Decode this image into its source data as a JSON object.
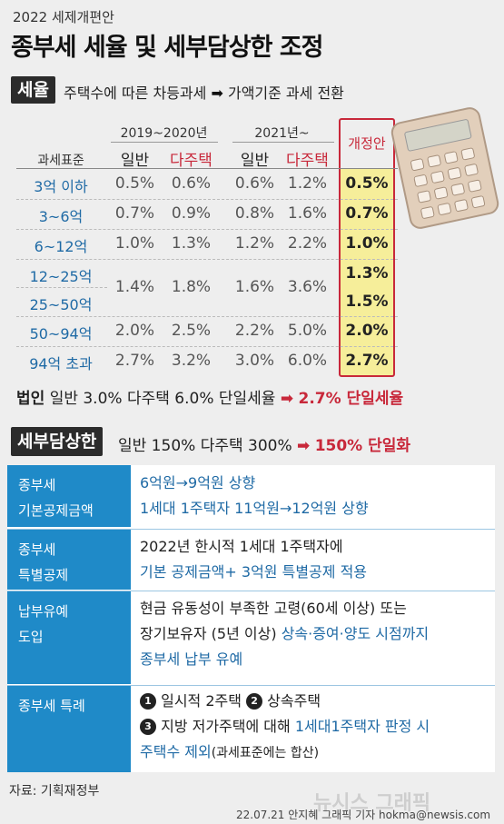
{
  "header": {
    "subtitle": "2022 세제개편안",
    "title": "종부세 세율 및 세부담상한 조정"
  },
  "section1": {
    "tag": "세율",
    "desc_left": "주택수에 따른 차등과세",
    "arrow": "➡",
    "desc_right": "가액기준 과세 전환"
  },
  "tax_table": {
    "group1": "2019~2020년",
    "group2": "2021년~",
    "row_header": "과세표준",
    "col_general": "일반",
    "col_multi": "다주택",
    "new_col": "개정안",
    "rows": [
      {
        "label": "3억 이하",
        "g1": "0.5%",
        "m1": "0.6%",
        "g2": "0.6%",
        "m2": "1.2%",
        "new": "0.5%"
      },
      {
        "label": "3~6억",
        "g1": "0.7%",
        "m1": "0.9%",
        "g2": "0.8%",
        "m2": "1.6%",
        "new": "0.7%"
      },
      {
        "label": "6~12억",
        "g1": "1.0%",
        "m1": "1.3%",
        "g2": "1.2%",
        "m2": "2.2%",
        "new": "1.0%"
      },
      {
        "label": "12~25억",
        "new": "1.3%"
      },
      {
        "label": "25~50억",
        "new": "1.5%"
      },
      {
        "label": "50~94억",
        "g1": "2.0%",
        "m1": "2.5%",
        "g2": "2.2%",
        "m2": "5.0%",
        "new": "2.0%"
      },
      {
        "label": "94억 초과",
        "g1": "2.7%",
        "m1": "3.2%",
        "g2": "3.0%",
        "m2": "6.0%",
        "new": "2.7%"
      }
    ],
    "merged_row": {
      "g1": "1.4%",
      "m1": "1.8%",
      "g2": "1.6%",
      "m2": "3.6%"
    }
  },
  "corporate": {
    "label": "법인",
    "text": "일반 3.0% 다주택 6.0% 단일세율",
    "arrow": "➡",
    "result": "2.7% 단일세율"
  },
  "section2": {
    "tag": "세부담상한",
    "text": "일반 150% 다주택 300%",
    "arrow": "➡",
    "result": "150% 단일화"
  },
  "details": [
    {
      "label1": "종부세",
      "label2": "기본공제금액",
      "line1": "6억원→9억원 상향",
      "line2": "1세대 1주택자 11억원→12억원 상향"
    },
    {
      "label1": "종부세",
      "label2": "특별공제",
      "line1": "2022년 한시적 1세대 1주택자에",
      "line2": "기본 공제금액+ 3억원 특별공제 적용"
    },
    {
      "label1": "납부유예",
      "label2": "도입",
      "line1": "현금 유동성이 부족한 고령(60세 이상) 또는",
      "line2a": "장기보유자 (5년 이상) ",
      "line2b": "상속·증여·양도 시점까지",
      "line3": "종부세 납부 유예"
    },
    {
      "label1": "종부세 특례",
      "item1_num": "1",
      "item1": "일시적 2주택",
      "item2_num": "2",
      "item2": "상속주택",
      "item3_num": "3",
      "item3a": "지방 저가주택에 대해 ",
      "item3b": "1세대1주택자 판정 시",
      "item3c": "주택수 제외",
      "item3d": "(과세표준에는 합산)"
    }
  ],
  "footer": {
    "source": "자료: 기획재정부",
    "credit": "22.07.21 안지혜 그래픽 기자 hokma@newsis.com",
    "logo": "뉴시스 그래픽"
  }
}
